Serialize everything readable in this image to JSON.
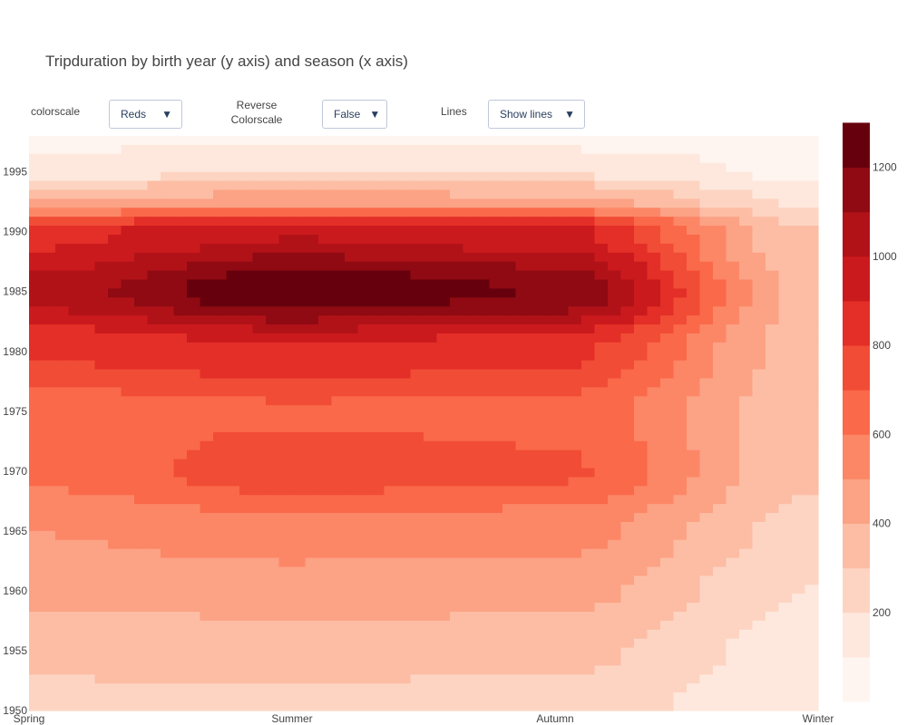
{
  "title": "Tripduration by birth year (y axis) and season (x axis)",
  "controls": {
    "colorscale": {
      "label": "colorscale",
      "value": "Reds"
    },
    "reverse": {
      "label_line1": "Reverse",
      "label_line2": "Colorscale",
      "value": "False"
    },
    "lines": {
      "label": "Lines",
      "value": "Show lines"
    },
    "caret": "▼"
  },
  "chart_data": {
    "type": "contour",
    "colorscale": "Reds",
    "x": [
      "Spring",
      "Summer",
      "Autumn",
      "Winter"
    ],
    "ylim": [
      1950,
      1998
    ],
    "yticks": [
      1950,
      1955,
      1960,
      1965,
      1970,
      1975,
      1980,
      1985,
      1990,
      1995
    ],
    "zlim": [
      0,
      1250
    ],
    "colorbar_ticks": [
      200,
      400,
      600,
      800,
      1000,
      1200
    ],
    "contour_step": 100,
    "profile": [
      {
        "year": 1950,
        "values": [
          250,
          250,
          240,
          120
        ]
      },
      {
        "year": 1955,
        "values": [
          320,
          330,
          320,
          140
        ]
      },
      {
        "year": 1960,
        "values": [
          400,
          430,
          420,
          190
        ]
      },
      {
        "year": 1965,
        "values": [
          480,
          540,
          520,
          250
        ]
      },
      {
        "year": 1970,
        "values": [
          600,
          730,
          690,
          310
        ]
      },
      {
        "year": 1975,
        "values": [
          620,
          660,
          640,
          320
        ]
      },
      {
        "year": 1980,
        "values": [
          780,
          840,
          800,
          330
        ]
      },
      {
        "year": 1985,
        "values": [
          1000,
          1250,
          1150,
          340
        ]
      },
      {
        "year": 1990,
        "values": [
          830,
          950,
          900,
          290
        ]
      },
      {
        "year": 1993,
        "values": [
          340,
          400,
          380,
          160
        ]
      },
      {
        "year": 1995,
        "values": [
          160,
          190,
          180,
          70
        ]
      },
      {
        "year": 1998,
        "values": [
          60,
          70,
          60,
          30
        ]
      }
    ]
  }
}
